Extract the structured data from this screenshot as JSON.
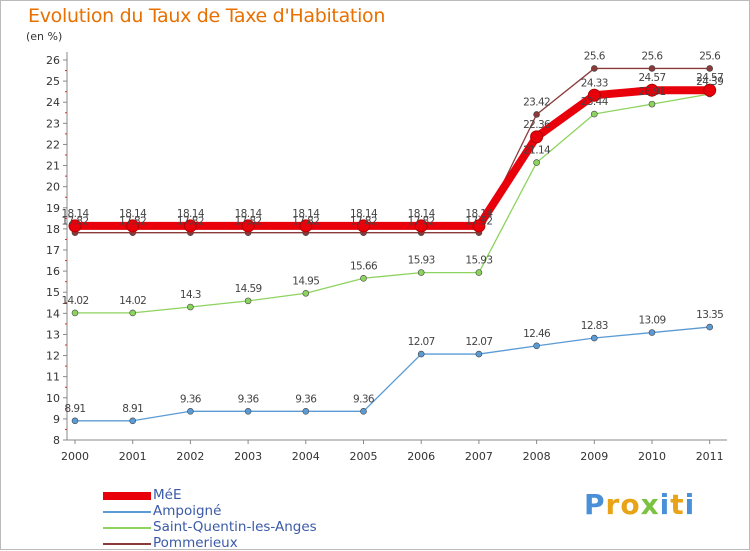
{
  "chart_data": {
    "type": "line",
    "title": "Evolution du Taux de Taxe d'Habitation",
    "unit_label": "(en %)",
    "x": [
      "2000",
      "2001",
      "2002",
      "2003",
      "2004",
      "2005",
      "2006",
      "2007",
      "2008",
      "2009",
      "2010",
      "2011"
    ],
    "ylim": [
      8,
      26
    ],
    "yticks": [
      8,
      9,
      10,
      11,
      12,
      13,
      14,
      15,
      16,
      17,
      18,
      19,
      20,
      21,
      22,
      23,
      24,
      25,
      26
    ],
    "grid": false,
    "series": [
      {
        "name": "MéE",
        "color": "#e8000b",
        "values": [
          18.14,
          18.14,
          18.14,
          18.14,
          18.14,
          18.14,
          18.14,
          18.14,
          22.36,
          24.33,
          24.57,
          24.57
        ],
        "labels": [
          "18.14",
          "18.14",
          "18.14",
          "18.14",
          "18.14",
          "18.14",
          "18.14",
          "18.14",
          "22.36",
          "24.33",
          "24.57",
          "24.57"
        ]
      },
      {
        "name": "Ampoigné",
        "color": "#5b9bd5",
        "values": [
          8.91,
          8.91,
          9.36,
          9.36,
          9.36,
          9.36,
          12.07,
          12.07,
          12.46,
          12.83,
          13.09,
          13.35
        ],
        "labels": [
          "8.91",
          "8.91",
          "9.36",
          "9.36",
          "9.36",
          "9.36",
          "12.07",
          "12.07",
          "12.46",
          "12.83",
          "13.09",
          "13.35"
        ]
      },
      {
        "name": "Saint-Quentin-les-Anges",
        "color": "#8dd35f",
        "values": [
          14.02,
          14.02,
          14.3,
          14.59,
          14.95,
          15.66,
          15.93,
          15.93,
          21.14,
          23.44,
          23.91,
          24.39
        ],
        "labels": [
          "14.02",
          "14.02",
          "14.3",
          "14.59",
          "14.95",
          "15.66",
          "15.93",
          "15.93",
          "21.14",
          "23.44",
          "23.91",
          "24.39"
        ]
      },
      {
        "name": "Pommerieux",
        "color": "#8b3a3a",
        "values": [
          17.82,
          17.82,
          17.82,
          17.82,
          17.82,
          17.82,
          17.82,
          17.82,
          23.42,
          25.6,
          25.6,
          25.6
        ],
        "labels": [
          "17.82",
          "17.82",
          "17.82",
          "17.82",
          "17.82",
          "17.82",
          "17.82",
          "17.82",
          "23.42",
          "25.6",
          "25.6",
          "25.6"
        ]
      }
    ],
    "legend_position": "bottom-left"
  },
  "logo": {
    "text": "Proxiti",
    "letters": [
      {
        "ch": "P",
        "color": "#4a90d9"
      },
      {
        "ch": "r",
        "color": "#e8a317"
      },
      {
        "ch": "o",
        "color": "#e8a317"
      },
      {
        "ch": "x",
        "color": "#7cc242"
      },
      {
        "ch": "i",
        "color": "#4a90d9"
      },
      {
        "ch": "t",
        "color": "#e8a317"
      },
      {
        "ch": "i",
        "color": "#4a90d9"
      }
    ]
  }
}
